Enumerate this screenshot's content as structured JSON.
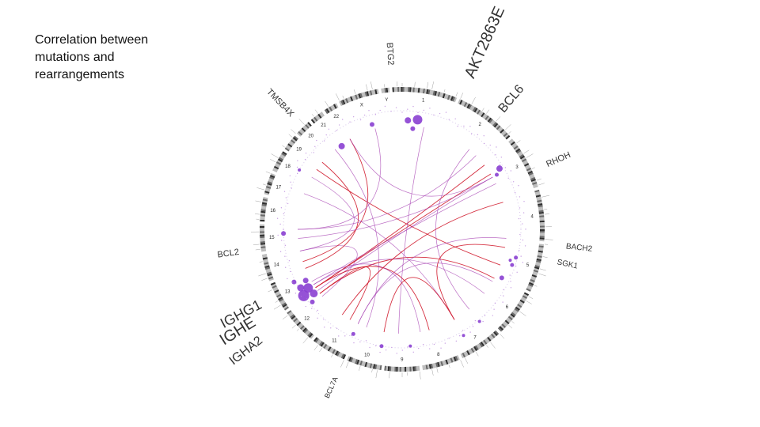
{
  "slide": {
    "title": " Correlation between\nmutations and\nrearrangements"
  },
  "circos": {
    "chromosomes": [
      "1",
      "2",
      "3",
      "4",
      "5",
      "6",
      "7",
      "8",
      "9",
      "10",
      "11",
      "12",
      "13",
      "14",
      "15",
      "16",
      "17",
      "18",
      "19",
      "20",
      "21",
      "22",
      "X",
      "Y"
    ],
    "colors": {
      "link_primary": "#d0192c",
      "link_secondary": "#a43cb0",
      "mutation_dot": "#8a3fd1",
      "ideogram_dark": "#2e2e2e",
      "ideogram_light": "#bcbcbc"
    },
    "gene_labels": [
      {
        "text": "BTG2",
        "size": 11
      },
      {
        "text": "AKT2863E",
        "size": 20
      },
      {
        "text": "BCL6",
        "size": 16
      },
      {
        "text": "RHOH",
        "size": 11
      },
      {
        "text": "SGK1",
        "size": 10
      },
      {
        "text": "BACH2",
        "size": 10
      },
      {
        "text": "TMSB4X",
        "size": 11
      },
      {
        "text": "BCL2",
        "size": 11
      },
      {
        "text": "IGHG1",
        "size": 18
      },
      {
        "text": "IGHE",
        "size": 20
      },
      {
        "text": "IGHA2",
        "size": 16
      },
      {
        "text": "BCL7A",
        "size": 9
      }
    ]
  }
}
